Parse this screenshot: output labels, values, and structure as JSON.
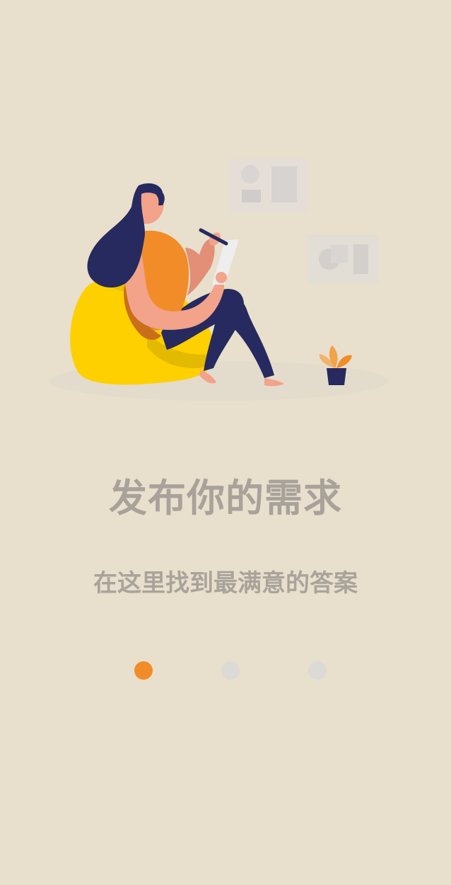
{
  "onboarding": {
    "title": "发布你的需求",
    "subtitle": "在这里找到最满意的答案",
    "page_indicator": {
      "current_page": 1,
      "total_pages": 3
    }
  },
  "illustration": {
    "icon": "woman-on-beanbag-writing-illustration"
  },
  "colors": {
    "background": "#e8dfcc",
    "accent": "#f28c28",
    "indicator_inactive": "#dcdad6",
    "title_text": "#a9a29b",
    "beanbag": "#ffd000",
    "navy": "#262a5e",
    "skin": "#f2a38a"
  }
}
